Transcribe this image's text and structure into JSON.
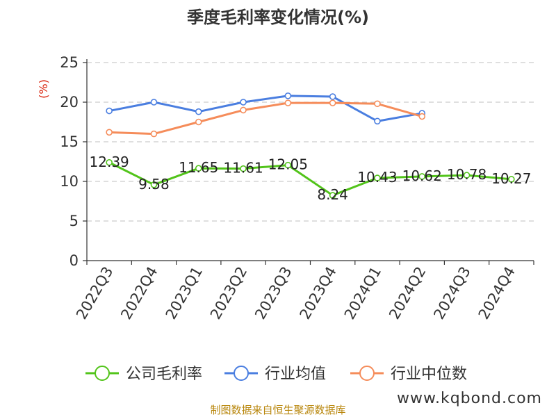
{
  "chart_data": {
    "type": "line",
    "title": "季度毛利率变化情况(%)",
    "ylabel": "(%)",
    "xlabel": "",
    "ylim": [
      0,
      25
    ],
    "yticks": [
      0,
      5,
      10,
      15,
      20,
      25
    ],
    "grid": true,
    "legend_position": "bottom",
    "categories": [
      "2022Q3",
      "2022Q4",
      "2023Q1",
      "2023Q2",
      "2023Q3",
      "2023Q4",
      "2024Q1",
      "2024Q2",
      "2024Q3",
      "2024Q4"
    ],
    "series": [
      {
        "name": "公司毛利率",
        "color": "#52c41a",
        "show_labels": true,
        "values": [
          12.39,
          9.58,
          11.65,
          11.61,
          12.05,
          8.24,
          10.43,
          10.62,
          10.78,
          10.27
        ],
        "labels": [
          "12.39",
          "9.58",
          "11.65",
          "11.61",
          "12.05",
          "8.24",
          "10.43",
          "10.62",
          "10.78",
          "10.27"
        ]
      },
      {
        "name": "行业均值",
        "color": "#4a7ee0",
        "show_labels": false,
        "values": [
          18.9,
          20.0,
          18.8,
          20.0,
          20.8,
          20.7,
          17.6,
          18.6,
          null,
          null
        ]
      },
      {
        "name": "行业中位数",
        "color": "#f58c5a",
        "show_labels": false,
        "values": [
          16.2,
          16.0,
          17.5,
          19.0,
          19.9,
          19.9,
          19.8,
          18.2,
          null,
          null
        ]
      }
    ],
    "source": "制图数据来自恒生聚源数据库",
    "watermark": "www.kqbond.com"
  }
}
